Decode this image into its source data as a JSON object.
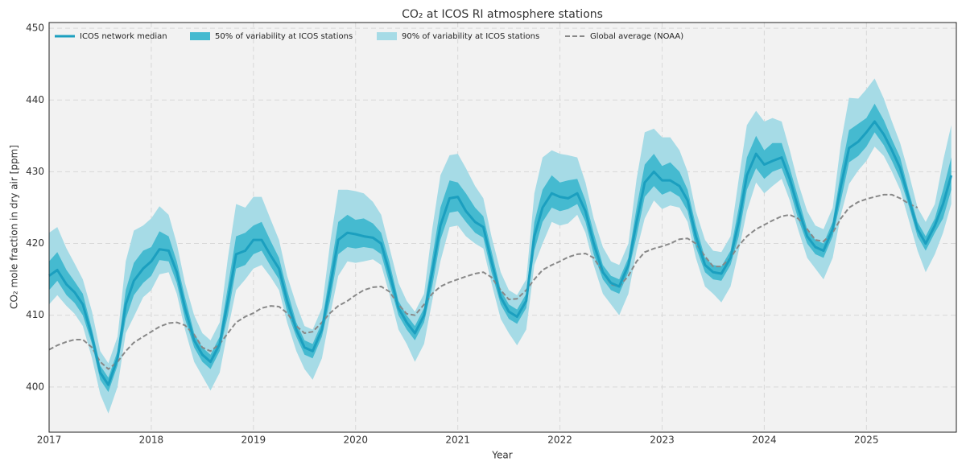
{
  "chart_data": {
    "type": "line",
    "title": "CO₂ at ICOS RI atmosphere stations",
    "xlabel": "Year",
    "ylabel": "CO₂ mole fraction in dry air [ppm]",
    "xlim": [
      2017,
      2025.88
    ],
    "ylim": [
      393.7,
      450.8
    ],
    "xticks": [
      2017,
      2018,
      2019,
      2020,
      2021,
      2022,
      2023,
      2024,
      2025
    ],
    "yticks": [
      400,
      410,
      420,
      430,
      440,
      450
    ],
    "grid": true,
    "legend": "upper left",
    "x": [
      2017,
      2017.08,
      2017.17,
      2017.25,
      2017.33,
      2017.42,
      2017.5,
      2017.58,
      2017.67,
      2017.75,
      2017.83,
      2017.92,
      2018,
      2018.08,
      2018.17,
      2018.25,
      2018.33,
      2018.42,
      2018.5,
      2018.58,
      2018.67,
      2018.75,
      2018.83,
      2018.92,
      2019,
      2019.08,
      2019.17,
      2019.25,
      2019.33,
      2019.42,
      2019.5,
      2019.58,
      2019.67,
      2019.75,
      2019.83,
      2019.92,
      2020,
      2020.08,
      2020.17,
      2020.25,
      2020.33,
      2020.42,
      2020.5,
      2020.58,
      2020.67,
      2020.75,
      2020.83,
      2020.92,
      2021,
      2021.08,
      2021.17,
      2021.25,
      2021.33,
      2021.42,
      2021.5,
      2021.58,
      2021.67,
      2021.75,
      2021.83,
      2021.92,
      2022,
      2022.08,
      2022.17,
      2022.25,
      2022.33,
      2022.42,
      2022.5,
      2022.58,
      2022.67,
      2022.75,
      2022.83,
      2022.92,
      2023,
      2023.08,
      2023.17,
      2023.25,
      2023.33,
      2023.42,
      2023.5,
      2023.58,
      2023.67,
      2023.75,
      2023.83,
      2023.92,
      2024,
      2024.08,
      2024.17,
      2024.25,
      2024.33,
      2024.42,
      2024.5,
      2024.58,
      2024.67,
      2024.75,
      2024.83,
      2024.92,
      2025,
      2025.08,
      2025.17,
      2025.25,
      2025.33,
      2025.42,
      2025.5,
      2025.58,
      2025.67,
      2025.75,
      2025.83
    ],
    "bands": [
      {
        "name": "50% of variability at ICOS stations",
        "color": "#45bad0",
        "low": [
          413.5,
          414.8,
          412.8,
          411.7,
          410,
          406,
          401,
          399.3,
          403,
          409.5,
          412.8,
          414.5,
          415.5,
          417.7,
          417.5,
          414.5,
          409.5,
          405.5,
          403.5,
          402.5,
          405,
          410,
          416.5,
          417,
          418.5,
          419,
          416.8,
          415,
          410.5,
          407,
          404.5,
          404,
          407,
          412,
          418.5,
          419.5,
          419.3,
          419.5,
          419.3,
          418.5,
          414.5,
          410,
          408,
          406.5,
          409,
          414,
          420.5,
          424.3,
          424.5,
          423,
          421.5,
          420.8,
          416,
          411.5,
          409.5,
          408.8,
          411,
          419,
          423,
          425,
          424.5,
          424.8,
          425.5,
          423,
          418.5,
          415,
          413.5,
          413,
          416,
          421,
          426.5,
          428,
          426.8,
          427.3,
          426.5,
          424.5,
          419.5,
          416,
          415,
          414.8,
          417,
          421,
          427.5,
          430.5,
          429,
          430,
          430.5,
          427.5,
          423.5,
          420,
          418.5,
          418,
          421,
          426,
          431.3,
          432.2,
          433.5,
          435.5,
          433.7,
          431.5,
          429,
          425,
          421,
          419,
          421.5,
          423.5,
          427.5
        ],
        "high": [
          417.5,
          418.8,
          416.3,
          414.7,
          413,
          408,
          403,
          401.3,
          405,
          413.5,
          417.3,
          419,
          419.5,
          421.7,
          421,
          417.5,
          412.5,
          407.5,
          405.5,
          404.5,
          407,
          414,
          421,
          421.5,
          422.5,
          423,
          420.3,
          418,
          413.5,
          409,
          406.5,
          406,
          409,
          416,
          423,
          424,
          423.3,
          423.5,
          422.8,
          421.5,
          417.5,
          412,
          410,
          408.5,
          411,
          418,
          425,
          428.8,
          428.5,
          427,
          425,
          423.8,
          419,
          413.5,
          411.5,
          410.8,
          413,
          423,
          427.5,
          429.5,
          428.5,
          428.8,
          429,
          426,
          421.5,
          417,
          415.5,
          415,
          418,
          425,
          431,
          432.5,
          430.8,
          431.3,
          430,
          427.5,
          422.5,
          418,
          417,
          416.8,
          419,
          425,
          432,
          435,
          433,
          434,
          434,
          430.5,
          426.5,
          422,
          420.5,
          420,
          423,
          430,
          435.8,
          436.7,
          437.5,
          439.5,
          437.2,
          434.5,
          432,
          427,
          423,
          421,
          423.5,
          427.5,
          432
        ]
      },
      {
        "name": "90% of variability at ICOS stations",
        "color": "#a6dbe6",
        "low": [
          411.5,
          412.8,
          411.3,
          410.2,
          408.5,
          404,
          399,
          396.3,
          400,
          407.5,
          409.8,
          412.5,
          413.5,
          415.7,
          416,
          413,
          408,
          403.5,
          401.5,
          399.5,
          402,
          408,
          413.5,
          415,
          416.5,
          417,
          415.3,
          413.5,
          409,
          405,
          402.5,
          401,
          404,
          410,
          415.5,
          417.5,
          417.3,
          417.5,
          417.8,
          417,
          413,
          408,
          406,
          403.5,
          406,
          412,
          417.5,
          422.3,
          422.5,
          421,
          420,
          419.3,
          414.5,
          409.5,
          407.5,
          405.8,
          408,
          417,
          420,
          423,
          422.5,
          422.8,
          424,
          421.5,
          417,
          413,
          411.5,
          410,
          413,
          419,
          423.5,
          426,
          424.8,
          425.3,
          425,
          423,
          418,
          414,
          413,
          411.8,
          414,
          419,
          424.5,
          428.5,
          427,
          428,
          429,
          426,
          422,
          418,
          416.5,
          415,
          418,
          424,
          428.3,
          430.2,
          431.5,
          433.5,
          432.2,
          430,
          427.5,
          423,
          419,
          416,
          418.5,
          421.5,
          425.5
        ],
        "high": [
          421.5,
          422.3,
          419.3,
          417.2,
          415,
          410.5,
          405,
          403.3,
          407,
          417.5,
          421.8,
          422.5,
          423.5,
          425.2,
          424,
          420,
          414.5,
          410,
          407.5,
          406.5,
          409,
          418,
          425.5,
          425,
          426.5,
          426.5,
          423.3,
          420.5,
          415.5,
          411.5,
          408.5,
          408,
          411,
          420,
          427.5,
          427.5,
          427.3,
          427,
          425.8,
          424,
          419.5,
          414.5,
          412,
          410.5,
          413,
          422,
          429.5,
          432.3,
          432.5,
          430.5,
          428,
          426.3,
          421,
          416,
          413.5,
          412.8,
          415,
          427,
          432,
          433,
          432.5,
          432.3,
          432,
          428.5,
          423.5,
          419.5,
          417.5,
          417,
          420,
          429,
          435.5,
          436,
          434.8,
          434.8,
          433,
          430,
          424.5,
          420.5,
          419,
          418.8,
          421,
          429,
          436.5,
          438.5,
          437,
          437.5,
          437,
          433,
          428.5,
          424.5,
          422.5,
          422,
          425,
          434,
          440.3,
          440.2,
          441.5,
          443,
          440.2,
          437,
          434,
          429.5,
          425,
          423,
          425.5,
          431.5,
          436.5
        ]
      }
    ],
    "series": [
      {
        "name": "ICOS network median",
        "color": "#1b9fbf",
        "values": [
          415.5,
          416.3,
          414.3,
          413.2,
          411.5,
          407,
          402,
          400.3,
          404,
          411.5,
          414.8,
          416.5,
          417.5,
          419.2,
          419,
          416,
          411,
          406.5,
          404.5,
          403.5,
          406,
          412,
          418.5,
          419,
          420.5,
          420.5,
          418.3,
          416.5,
          412,
          408,
          405.5,
          405,
          408,
          414,
          420.5,
          421.5,
          421.3,
          421,
          420.8,
          420,
          416,
          411,
          409,
          407.5,
          410,
          416,
          422.5,
          426.3,
          426.5,
          424.5,
          423,
          422.3,
          417.5,
          412.5,
          410.5,
          409.8,
          412,
          421,
          425,
          427,
          426.5,
          426.3,
          427,
          424.5,
          420,
          416,
          414.5,
          414,
          417,
          423,
          428.5,
          430,
          428.8,
          428.8,
          428,
          426,
          421,
          417,
          416,
          415.8,
          418,
          423,
          429.5,
          432.5,
          431,
          431.5,
          432,
          429,
          425,
          421,
          419.5,
          419,
          422,
          428,
          433.3,
          434.2,
          435.5,
          437,
          435.2,
          433,
          430.5,
          426,
          422,
          420,
          422.5,
          425.5,
          429.5
        ]
      },
      {
        "name": "Global average (NOAA)",
        "color": "#888888",
        "dashed": true,
        "values": [
          405.2,
          405.8,
          406.3,
          406.6,
          406.6,
          405.5,
          403.5,
          402.5,
          403.5,
          405,
          406.2,
          407,
          407.7,
          408.4,
          408.9,
          409,
          408.6,
          407.3,
          405.5,
          405,
          406,
          407.5,
          409,
          409.8,
          410.3,
          411,
          411.3,
          411.2,
          410.3,
          408.5,
          407.5,
          407.7,
          409,
          410.3,
          411.3,
          412,
          412.8,
          413.5,
          413.9,
          414,
          413.3,
          411.5,
          410.2,
          410,
          411.5,
          413,
          414,
          414.6,
          415,
          415.4,
          415.8,
          416,
          415.3,
          413.5,
          412.2,
          412.3,
          413.5,
          415,
          416.3,
          417,
          417.5,
          418.1,
          418.5,
          418.6,
          418,
          416,
          414.3,
          414,
          415.5,
          417.5,
          418.8,
          419.3,
          419.6,
          420,
          420.6,
          420.7,
          420,
          418.2,
          416.8,
          416.8,
          418,
          419.7,
          421,
          422,
          422.6,
          423.2,
          423.8,
          424,
          423.5,
          422,
          420.5,
          420.3,
          421.5,
          423.5,
          425,
          425.8,
          426.2,
          426.5,
          426.8,
          426.8,
          426.3,
          425.5,
          425,
          null,
          null,
          null,
          null
        ]
      }
    ]
  }
}
